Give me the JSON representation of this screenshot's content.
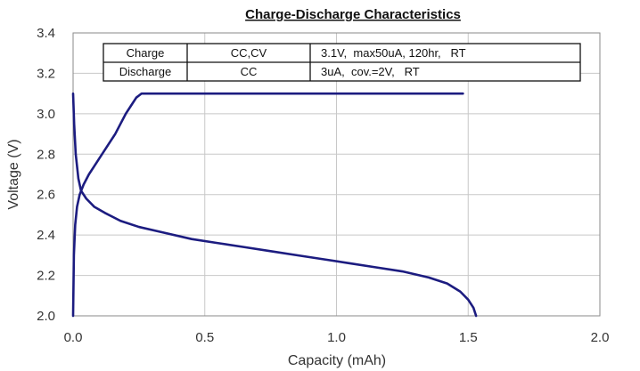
{
  "chart_data": {
    "type": "line",
    "title": "Charge-Discharge Characteristics",
    "xlabel": "Capacity (mAh)",
    "ylabel": "Voltage (V)",
    "xlim": [
      0.0,
      2.0
    ],
    "ylim": [
      2.0,
      3.4
    ],
    "x_ticks": [
      "0.0",
      "0.5",
      "1.0",
      "1.5",
      "2.0"
    ],
    "y_ticks": [
      "2.0",
      "2.2",
      "2.4",
      "2.6",
      "2.8",
      "3.0",
      "3.2",
      "3.4"
    ],
    "grid": true,
    "line_color": "#1c1c80",
    "conditions_table": {
      "rows": [
        [
          "Charge",
          "CC,CV",
          "3.1V,  max50uA, 120hr,   RT"
        ],
        [
          "Discharge",
          "CC",
          "3uA,  cov.=2V,   RT"
        ]
      ]
    },
    "series": [
      {
        "points": [
          [
            0.0,
            2.0
          ],
          [
            0.003,
            2.3
          ],
          [
            0.008,
            2.45
          ],
          [
            0.015,
            2.54
          ],
          [
            0.025,
            2.6
          ],
          [
            0.04,
            2.65
          ],
          [
            0.06,
            2.7
          ],
          [
            0.08,
            2.74
          ],
          [
            0.1,
            2.78
          ],
          [
            0.13,
            2.84
          ],
          [
            0.16,
            2.9
          ],
          [
            0.18,
            2.95
          ],
          [
            0.2,
            3.0
          ],
          [
            0.22,
            3.04
          ],
          [
            0.24,
            3.08
          ],
          [
            0.26,
            3.1
          ],
          [
            0.4,
            3.1
          ],
          [
            0.6,
            3.1
          ],
          [
            0.8,
            3.1
          ],
          [
            1.0,
            3.1
          ],
          [
            1.2,
            3.1
          ],
          [
            1.4,
            3.1
          ],
          [
            1.48,
            3.1
          ]
        ]
      },
      {
        "points": [
          [
            0.0,
            3.1
          ],
          [
            0.004,
            2.95
          ],
          [
            0.01,
            2.8
          ],
          [
            0.02,
            2.68
          ],
          [
            0.03,
            2.62
          ],
          [
            0.05,
            2.58
          ],
          [
            0.08,
            2.54
          ],
          [
            0.12,
            2.51
          ],
          [
            0.18,
            2.47
          ],
          [
            0.25,
            2.44
          ],
          [
            0.35,
            2.41
          ],
          [
            0.45,
            2.38
          ],
          [
            0.55,
            2.36
          ],
          [
            0.65,
            2.34
          ],
          [
            0.75,
            2.32
          ],
          [
            0.85,
            2.3
          ],
          [
            0.95,
            2.28
          ],
          [
            1.05,
            2.26
          ],
          [
            1.15,
            2.24
          ],
          [
            1.25,
            2.22
          ],
          [
            1.35,
            2.19
          ],
          [
            1.42,
            2.16
          ],
          [
            1.47,
            2.12
          ],
          [
            1.5,
            2.08
          ],
          [
            1.52,
            2.04
          ],
          [
            1.53,
            2.0
          ]
        ]
      }
    ]
  }
}
